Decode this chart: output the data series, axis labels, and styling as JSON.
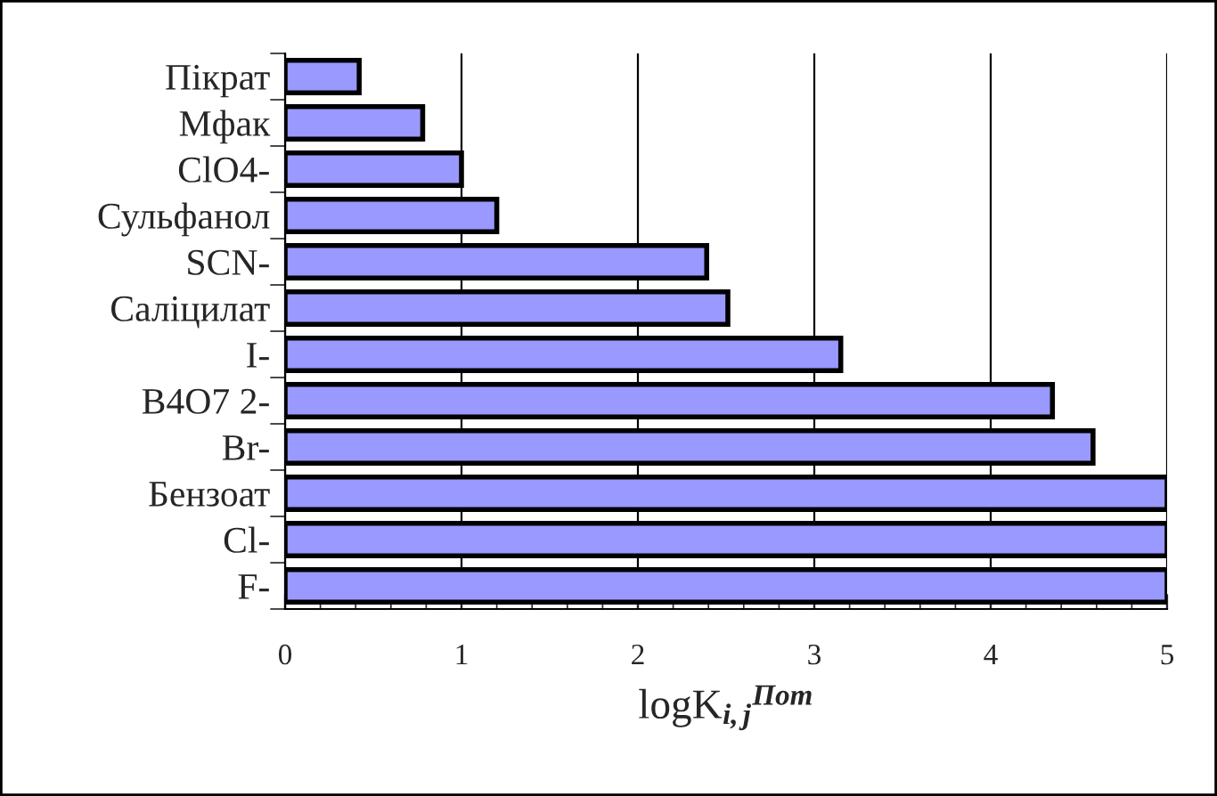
{
  "chart_data": {
    "type": "bar",
    "orientation": "horizontal",
    "xlabel": "logK$_{i,j}$$^{Пот}$",
    "categories": [
      "Пікрат",
      "Мфак",
      "ClO4-",
      "Сульфанол",
      "SCN-",
      "Саліцилат",
      "I-",
      "B4O7 2-",
      "Br-",
      "Бензоат",
      "Cl-",
      "F-"
    ],
    "values": [
      0.42,
      0.78,
      1.0,
      1.2,
      2.39,
      2.51,
      3.15,
      4.35,
      4.58,
      5.0,
      5.0,
      5.0
    ],
    "color": "#9999ff",
    "xlim": [
      0,
      5
    ],
    "xticks": [
      0,
      1,
      2,
      3,
      4,
      5
    ],
    "grid": "x",
    "legend": false
  }
}
